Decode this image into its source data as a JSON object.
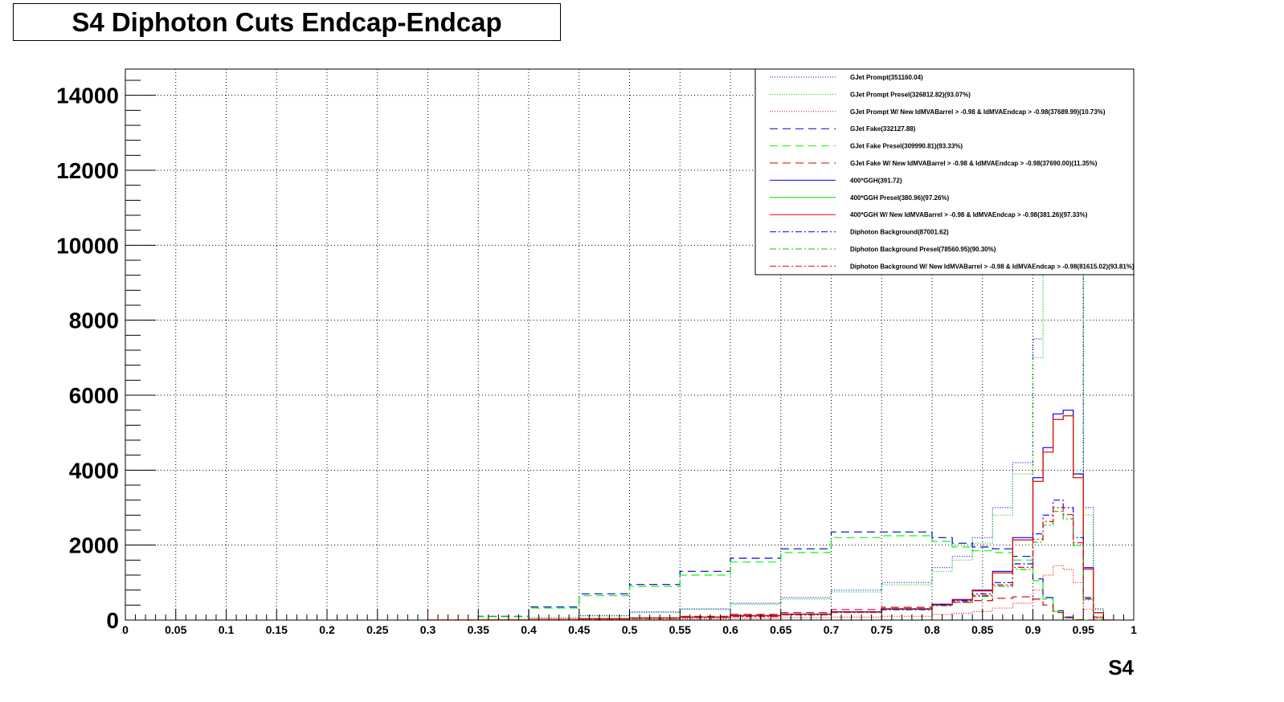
{
  "title": "S4 Diphoton Cuts Endcap-Endcap",
  "chart_data": {
    "type": "line",
    "xlabel": "S4",
    "ylabel": "",
    "xlim": [
      0,
      1
    ],
    "ylim": [
      0,
      14700
    ],
    "grid": true,
    "legend_position": "top-right",
    "x_ticks": [
      "0",
      "0.05",
      "0.1",
      "0.15",
      "0.2",
      "0.25",
      "0.3",
      "0.35",
      "0.4",
      "0.45",
      "0.5",
      "0.55",
      "0.6",
      "0.65",
      "0.7",
      "0.75",
      "0.8",
      "0.85",
      "0.9",
      "0.95",
      "1"
    ],
    "y_ticks": [
      "0",
      "2000",
      "4000",
      "6000",
      "8000",
      "10000",
      "12000",
      "14000"
    ],
    "x": [
      0.3,
      0.35,
      0.4,
      0.45,
      0.5,
      0.55,
      0.6,
      0.65,
      0.7,
      0.75,
      0.8,
      0.82,
      0.84,
      0.86,
      0.88,
      0.9,
      0.91,
      0.92,
      0.93,
      0.94,
      0.95,
      0.96,
      0.97
    ],
    "series": [
      {
        "name": "GJet Prompt(351160.04)",
        "color": "#0000ff",
        "dash": "1,2",
        "values": [
          0,
          20,
          60,
          120,
          220,
          300,
          450,
          600,
          800,
          1000,
          1400,
          1700,
          2200,
          3000,
          4200,
          7500,
          13000,
          16000,
          15000,
          11000,
          3000,
          300,
          0
        ]
      },
      {
        "name": "GJet Prompt Presel(326812.82)(93.07%)",
        "color": "#00cc00",
        "dash": "1,2",
        "values": [
          0,
          18,
          55,
          110,
          200,
          280,
          420,
          560,
          750,
          940,
          1300,
          1600,
          2050,
          2800,
          3900,
          7000,
          12100,
          14900,
          14000,
          10200,
          2800,
          280,
          0
        ]
      },
      {
        "name": "GJet Prompt W/ New IdMVABarrel > -0.98 & IdMVAEndcap > -0.98(37689.99)(10.73%)",
        "color": "#ff0000",
        "dash": "1,2",
        "values": [
          0,
          2,
          6,
          12,
          22,
          30,
          45,
          60,
          80,
          100,
          150,
          180,
          230,
          320,
          450,
          800,
          1200,
          1450,
          1350,
          1000,
          280,
          30,
          0
        ]
      },
      {
        "name": "GJet Fake(332127.88)",
        "color": "#0000cc",
        "dash": "10,6",
        "values": [
          0,
          100,
          350,
          700,
          950,
          1300,
          1650,
          1900,
          2350,
          2350,
          2200,
          2050,
          1950,
          1900,
          1700,
          1100,
          600,
          250,
          80,
          10,
          0,
          0,
          0
        ]
      },
      {
        "name": "GJet Fake Presel(309990.81)(93.33%)",
        "color": "#00ff00",
        "dash": "10,6",
        "values": [
          0,
          90,
          320,
          650,
          900,
          1200,
          1550,
          1800,
          2200,
          2250,
          2100,
          1950,
          1850,
          1800,
          1600,
          1050,
          560,
          230,
          70,
          10,
          0,
          0,
          0
        ]
      },
      {
        "name": "GJet Fake W/ New IdMVABarrel > -0.98 & IdMVAEndcap > -0.98(37690.00)(11.35%)",
        "color": "#cc0000",
        "dash": "10,6",
        "values": [
          0,
          5,
          15,
          30,
          60,
          100,
          150,
          200,
          280,
          340,
          420,
          470,
          520,
          580,
          620,
          560,
          400,
          200,
          60,
          8,
          0,
          0,
          0
        ]
      },
      {
        "name": "400*GGH(391.72)",
        "color": "#0000ff",
        "dash": "",
        "values": [
          0,
          5,
          20,
          40,
          60,
          80,
          120,
          160,
          220,
          300,
          420,
          550,
          800,
          1300,
          2200,
          3800,
          4600,
          5500,
          5600,
          3900,
          1400,
          200,
          0
        ]
      },
      {
        "name": "400*GGH Presel(380.96)(97.26%)",
        "color": "#00dd00",
        "dash": "",
        "values": [
          0,
          5,
          19,
          38,
          58,
          78,
          115,
          155,
          215,
          290,
          405,
          535,
          780,
          1260,
          2140,
          3700,
          4480,
          5350,
          5450,
          3800,
          1360,
          195,
          0
        ]
      },
      {
        "name": "400*GGH W/ New IdMVABarrel > -0.98 & IdMVAEndcap > -0.98(381.26)(97.33%)",
        "color": "#ff0000",
        "dash": "",
        "values": [
          0,
          5,
          19,
          38,
          58,
          78,
          115,
          155,
          215,
          290,
          405,
          535,
          780,
          1260,
          2140,
          3700,
          4480,
          5350,
          5450,
          3800,
          1360,
          195,
          0
        ]
      },
      {
        "name": "Diphoton Background(87001.62)",
        "color": "#0000ff",
        "dash": "8,3,2,3",
        "values": [
          0,
          5,
          15,
          30,
          50,
          70,
          100,
          150,
          220,
          300,
          420,
          520,
          700,
          1000,
          1500,
          2300,
          2800,
          3200,
          3000,
          2200,
          600,
          80,
          0
        ]
      },
      {
        "name": "Diphoton Background Presel(78560.95)(90.30%)",
        "color": "#00cc00",
        "dash": "8,3,2,3",
        "values": [
          0,
          4,
          13,
          27,
          45,
          63,
          90,
          135,
          200,
          270,
          380,
          470,
          630,
          900,
          1350,
          2080,
          2530,
          2900,
          2700,
          1990,
          540,
          70,
          0
        ]
      },
      {
        "name": "Diphoton Background W/ New IdMVABarrel > -0.98 & IdMVAEndcap > -0.98(81615.02)(93.81%)",
        "color": "#ff0000",
        "dash": "8,3,2,3",
        "values": [
          0,
          4,
          14,
          28,
          47,
          66,
          94,
          141,
          206,
          281,
          394,
          488,
          657,
          938,
          1407,
          2158,
          2627,
          3000,
          2814,
          2064,
          563,
          75,
          0
        ]
      }
    ]
  }
}
